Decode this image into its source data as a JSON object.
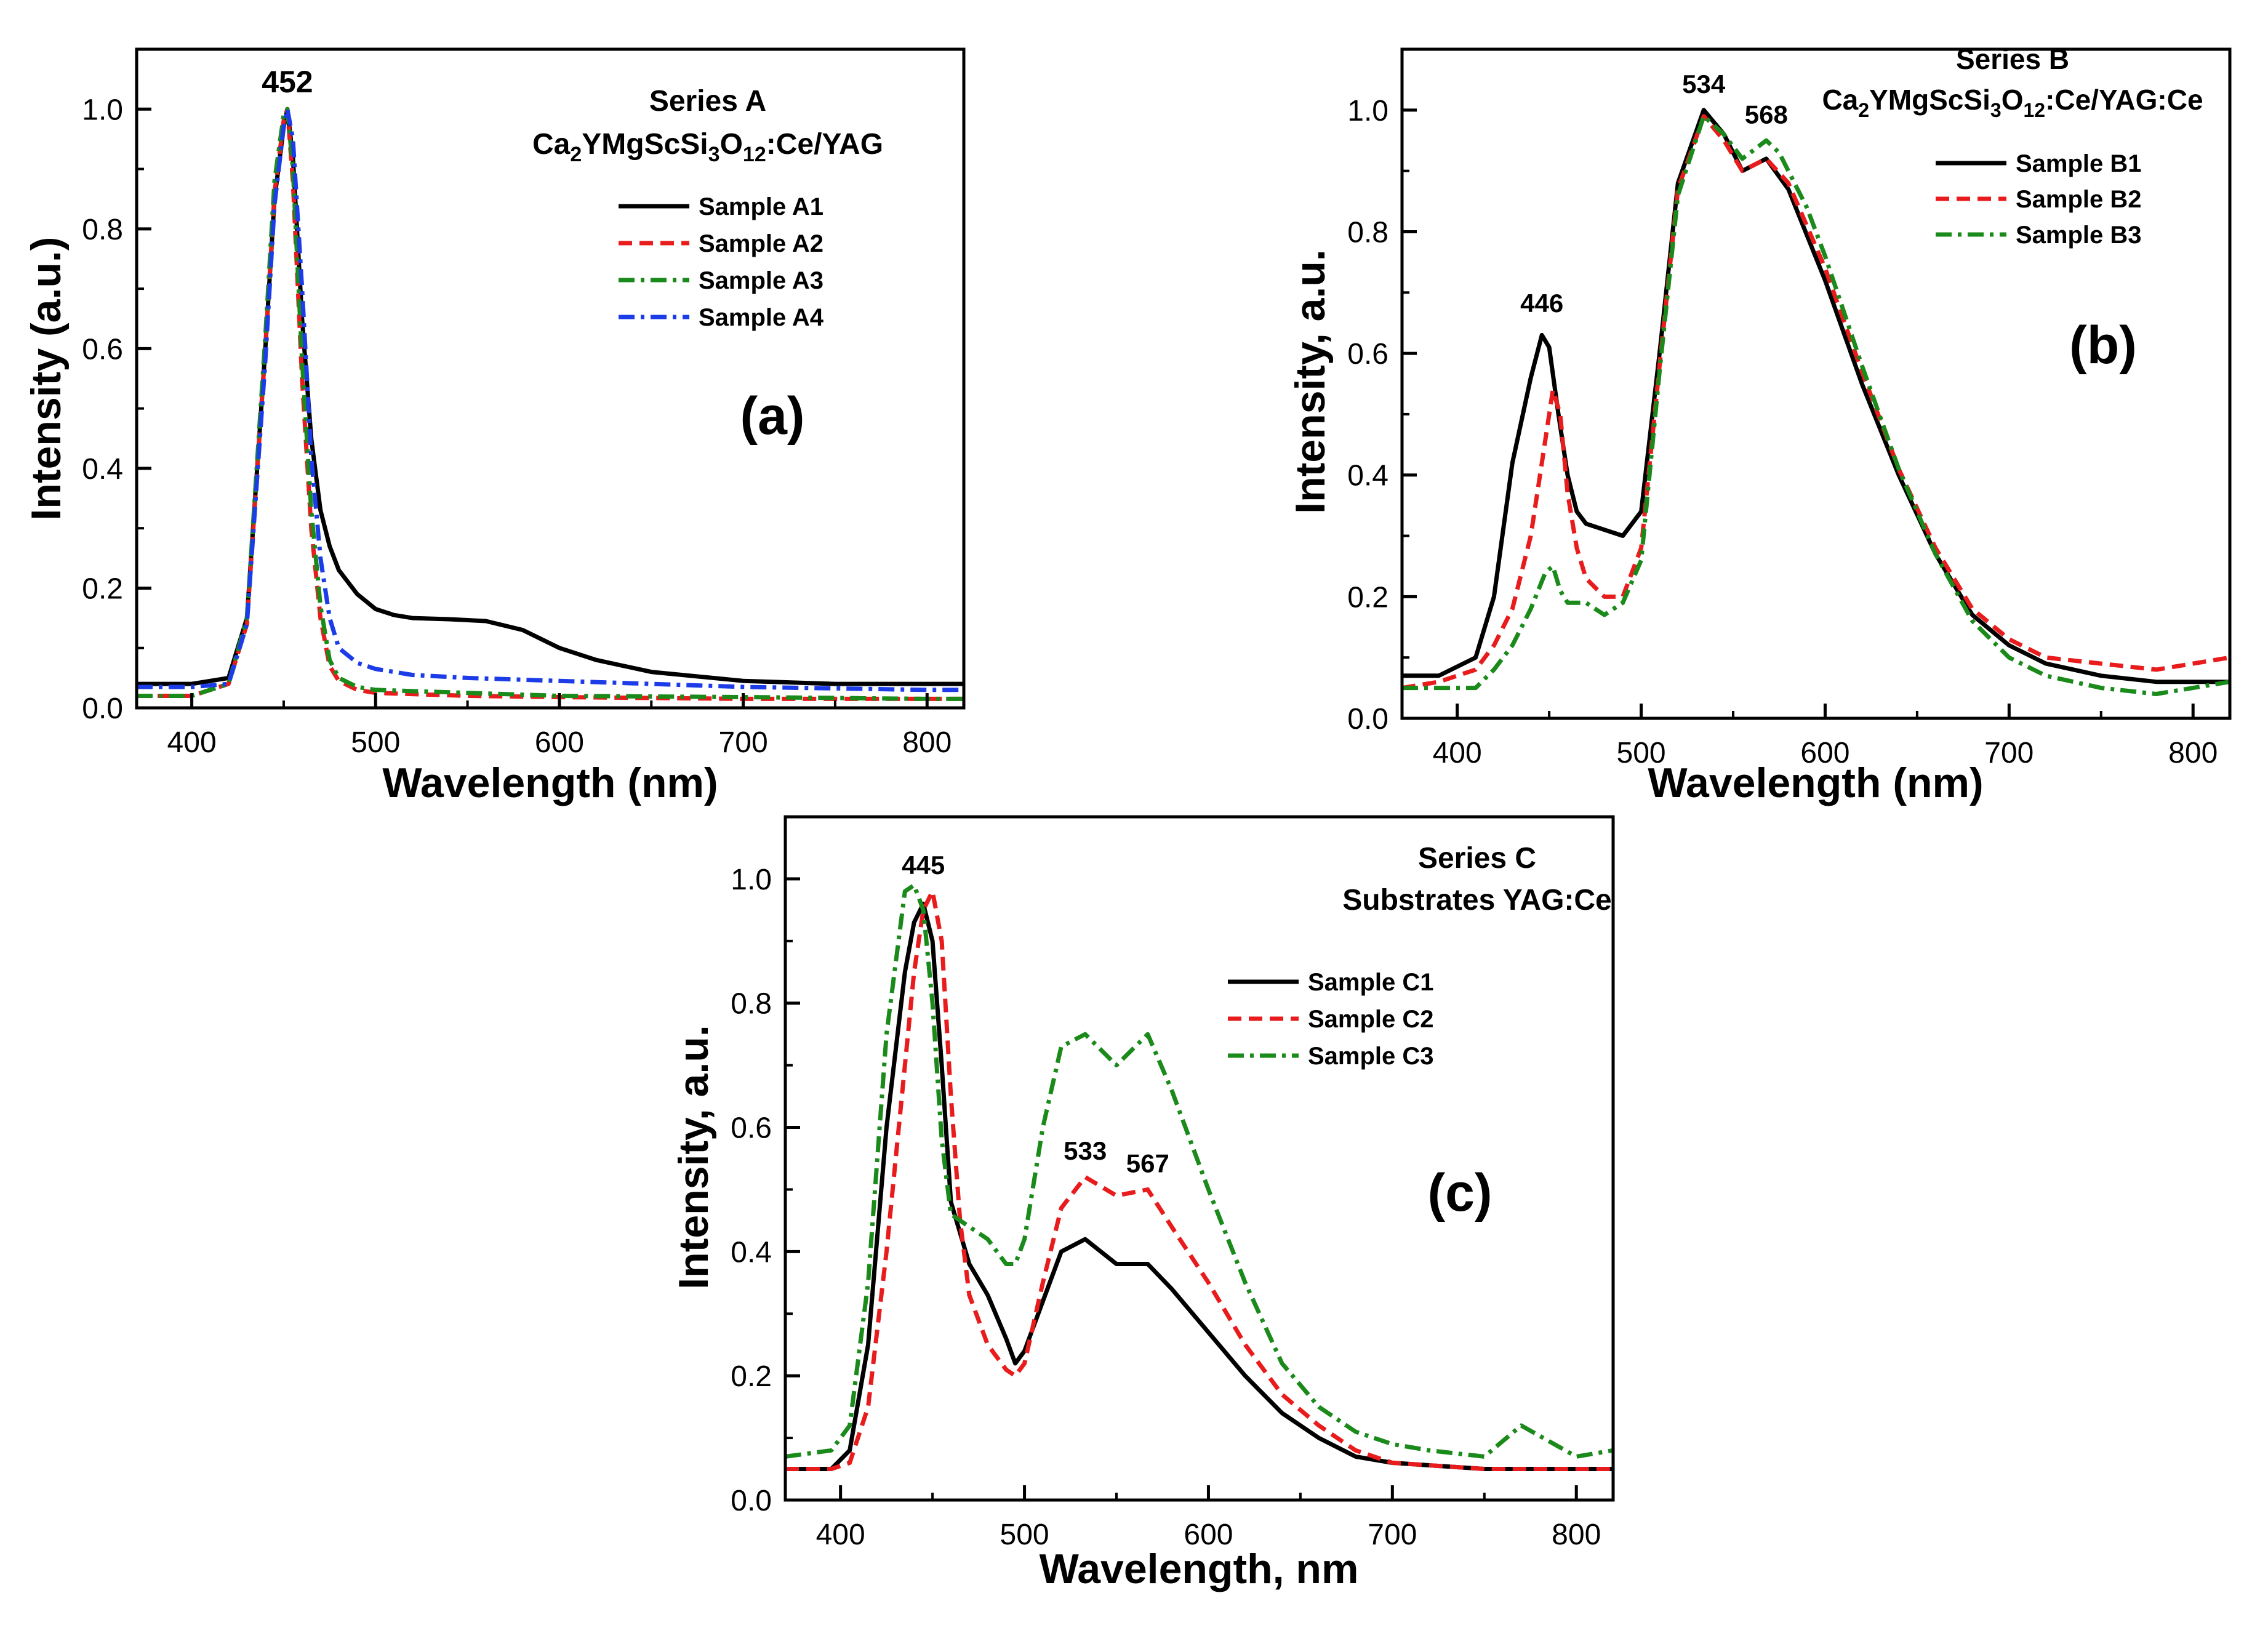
{
  "chart_data": [
    {
      "type": "line",
      "panel_label": "(a)",
      "title": "Series A",
      "subtitle": "Ca2YMgScSi3O12:Ce/YAG",
      "xlabel": "Wavelength (nm)",
      "ylabel": "Intensity (a.u.)",
      "xlim": [
        370,
        820
      ],
      "ylim": [
        0,
        1.1
      ],
      "xticks": [
        400,
        500,
        600,
        700,
        800
      ],
      "yticks": [
        0.0,
        0.2,
        0.4,
        0.6,
        0.8,
        1.0
      ],
      "xtick_labels": [
        "400",
        "500",
        "600",
        "700",
        "800"
      ],
      "ytick_labels": [
        "0.0",
        "0.2",
        "0.4",
        "0.6",
        "0.8",
        "1.0"
      ],
      "legend_position": "top-right",
      "annotations": [
        {
          "text": "452",
          "x": 452,
          "y": 1.02
        }
      ],
      "series": [
        {
          "name": "Sample A1",
          "color": "#000000",
          "dash": "solid",
          "x": [
            370,
            400,
            420,
            430,
            440,
            445,
            450,
            452,
            455,
            460,
            465,
            470,
            475,
            480,
            490,
            500,
            510,
            520,
            540,
            560,
            580,
            600,
            620,
            650,
            700,
            750,
            800,
            820
          ],
          "y": [
            0.04,
            0.04,
            0.05,
            0.15,
            0.6,
            0.85,
            0.97,
            1.0,
            0.92,
            0.65,
            0.45,
            0.33,
            0.27,
            0.23,
            0.19,
            0.165,
            0.155,
            0.15,
            0.148,
            0.145,
            0.13,
            0.1,
            0.08,
            0.06,
            0.045,
            0.04,
            0.04,
            0.04
          ]
        },
        {
          "name": "Sample A2",
          "color": "#e81c1c",
          "dash": "dash",
          "x": [
            370,
            400,
            420,
            430,
            440,
            445,
            450,
            452,
            455,
            460,
            465,
            470,
            475,
            480,
            490,
            500,
            550,
            600,
            700,
            800,
            820
          ],
          "y": [
            0.02,
            0.02,
            0.04,
            0.14,
            0.6,
            0.86,
            0.98,
            1.0,
            0.88,
            0.55,
            0.3,
            0.15,
            0.07,
            0.045,
            0.03,
            0.025,
            0.02,
            0.018,
            0.015,
            0.015,
            0.015
          ]
        },
        {
          "name": "Sample A3",
          "color": "#1a8a1a",
          "dash": "dashdot",
          "x": [
            370,
            400,
            420,
            430,
            440,
            445,
            450,
            452,
            455,
            460,
            465,
            470,
            475,
            480,
            490,
            500,
            550,
            600,
            700,
            800,
            820
          ],
          "y": [
            0.02,
            0.02,
            0.04,
            0.15,
            0.62,
            0.88,
            0.99,
            1.0,
            0.9,
            0.58,
            0.33,
            0.17,
            0.08,
            0.05,
            0.035,
            0.03,
            0.025,
            0.02,
            0.018,
            0.015,
            0.015
          ]
        },
        {
          "name": "Sample A4",
          "color": "#1c3ce8",
          "dash": "dashdot",
          "x": [
            370,
            400,
            420,
            430,
            440,
            445,
            450,
            452,
            455,
            460,
            465,
            470,
            475,
            480,
            490,
            500,
            520,
            550,
            600,
            650,
            700,
            800,
            820
          ],
          "y": [
            0.035,
            0.035,
            0.04,
            0.14,
            0.58,
            0.84,
            0.97,
            1.0,
            0.95,
            0.7,
            0.42,
            0.25,
            0.15,
            0.1,
            0.075,
            0.065,
            0.055,
            0.05,
            0.045,
            0.04,
            0.035,
            0.03,
            0.03
          ]
        }
      ]
    },
    {
      "type": "line",
      "panel_label": "(b)",
      "title": "Series B",
      "subtitle": "Ca2YMgScSi3O12:Ce/YAG:Ce",
      "xlabel": "Wavelength (nm)",
      "ylabel": "Intensity, a.u.",
      "xlim": [
        370,
        820
      ],
      "ylim": [
        0,
        1.1
      ],
      "xticks": [
        400,
        500,
        600,
        700,
        800
      ],
      "yticks": [
        0.0,
        0.2,
        0.4,
        0.6,
        0.8,
        1.0
      ],
      "xtick_labels": [
        "400",
        "500",
        "600",
        "700",
        "800"
      ],
      "ytick_labels": [
        "0.0",
        "0.2",
        "0.4",
        "0.6",
        "0.8",
        "1.0"
      ],
      "legend_position": "top-right",
      "annotations": [
        {
          "text": "446",
          "x": 446,
          "y": 0.66
        },
        {
          "text": "534",
          "x": 534,
          "y": 1.02
        },
        {
          "text": "568",
          "x": 568,
          "y": 0.97
        }
      ],
      "series": [
        {
          "name": "Sample B1",
          "color": "#000000",
          "dash": "solid",
          "x": [
            370,
            390,
            410,
            420,
            430,
            440,
            446,
            450,
            455,
            460,
            465,
            470,
            480,
            490,
            500,
            510,
            520,
            534,
            545,
            555,
            568,
            580,
            600,
            620,
            640,
            660,
            680,
            700,
            720,
            750,
            780,
            800,
            820
          ],
          "y": [
            0.07,
            0.07,
            0.1,
            0.2,
            0.42,
            0.56,
            0.63,
            0.61,
            0.5,
            0.4,
            0.34,
            0.32,
            0.31,
            0.3,
            0.34,
            0.6,
            0.88,
            1.0,
            0.96,
            0.9,
            0.92,
            0.87,
            0.72,
            0.55,
            0.4,
            0.27,
            0.17,
            0.12,
            0.09,
            0.07,
            0.06,
            0.06,
            0.06
          ]
        },
        {
          "name": "Sample B2",
          "color": "#e81c1c",
          "dash": "dash",
          "x": [
            370,
            390,
            410,
            420,
            430,
            440,
            446,
            452,
            456,
            460,
            465,
            470,
            480,
            490,
            500,
            510,
            520,
            534,
            545,
            555,
            568,
            580,
            600,
            620,
            640,
            660,
            680,
            700,
            720,
            750,
            780,
            800,
            820
          ],
          "y": [
            0.05,
            0.06,
            0.08,
            0.12,
            0.18,
            0.3,
            0.42,
            0.54,
            0.5,
            0.37,
            0.28,
            0.23,
            0.2,
            0.2,
            0.28,
            0.58,
            0.87,
            0.99,
            0.95,
            0.9,
            0.92,
            0.88,
            0.74,
            0.57,
            0.41,
            0.28,
            0.18,
            0.13,
            0.1,
            0.09,
            0.08,
            0.09,
            0.1
          ]
        },
        {
          "name": "Sample B3",
          "color": "#1a8a1a",
          "dash": "dashdot",
          "x": [
            370,
            390,
            410,
            420,
            430,
            440,
            448,
            452,
            456,
            460,
            470,
            480,
            490,
            500,
            510,
            520,
            534,
            545,
            555,
            568,
            575,
            590,
            600,
            620,
            640,
            660,
            680,
            700,
            720,
            750,
            780,
            800,
            820
          ],
          "y": [
            0.05,
            0.05,
            0.05,
            0.08,
            0.12,
            0.18,
            0.24,
            0.25,
            0.21,
            0.19,
            0.19,
            0.17,
            0.19,
            0.26,
            0.57,
            0.86,
            0.99,
            0.96,
            0.92,
            0.95,
            0.93,
            0.84,
            0.76,
            0.58,
            0.41,
            0.27,
            0.16,
            0.1,
            0.07,
            0.05,
            0.04,
            0.05,
            0.06
          ]
        }
      ]
    },
    {
      "type": "line",
      "panel_label": "(c)",
      "title": "Series C",
      "subtitle": "Substrates YAG:Ce",
      "xlabel": "Wavelength, nm",
      "ylabel": "Intensity, a.u.",
      "xlim": [
        370,
        820
      ],
      "ylim": [
        0,
        1.1
      ],
      "xticks": [
        400,
        500,
        600,
        700,
        800
      ],
      "yticks": [
        0.0,
        0.2,
        0.4,
        0.6,
        0.8,
        1.0
      ],
      "xtick_labels": [
        "400",
        "500",
        "600",
        "700",
        "800"
      ],
      "ytick_labels": [
        "0.0",
        "0.2",
        "0.4",
        "0.6",
        "0.8",
        "1.0"
      ],
      "legend_position": "right",
      "annotations": [
        {
          "text": "445",
          "x": 445,
          "y": 1.0
        },
        {
          "text": "533",
          "x": 533,
          "y": 0.54
        },
        {
          "text": "567",
          "x": 567,
          "y": 0.52
        }
      ],
      "series": [
        {
          "name": "Sample C1",
          "color": "#000000",
          "dash": "solid",
          "x": [
            370,
            395,
            405,
            415,
            425,
            435,
            440,
            445,
            450,
            455,
            460,
            470,
            480,
            490,
            495,
            500,
            510,
            520,
            533,
            550,
            567,
            580,
            600,
            620,
            640,
            660,
            680,
            700,
            750,
            800,
            820
          ],
          "y": [
            0.05,
            0.05,
            0.08,
            0.25,
            0.6,
            0.85,
            0.93,
            0.96,
            0.9,
            0.7,
            0.48,
            0.38,
            0.33,
            0.26,
            0.22,
            0.24,
            0.32,
            0.4,
            0.42,
            0.38,
            0.38,
            0.34,
            0.27,
            0.2,
            0.14,
            0.1,
            0.07,
            0.06,
            0.05,
            0.05,
            0.05
          ]
        },
        {
          "name": "Sample C2",
          "color": "#e81c1c",
          "dash": "dash",
          "x": [
            370,
            395,
            405,
            415,
            425,
            435,
            440,
            445,
            450,
            455,
            460,
            465,
            470,
            480,
            490,
            495,
            500,
            510,
            520,
            533,
            550,
            567,
            580,
            600,
            620,
            640,
            660,
            680,
            700,
            750,
            800,
            820
          ],
          "y": [
            0.05,
            0.05,
            0.06,
            0.15,
            0.4,
            0.7,
            0.85,
            0.95,
            0.98,
            0.9,
            0.65,
            0.45,
            0.33,
            0.25,
            0.21,
            0.2,
            0.22,
            0.35,
            0.47,
            0.52,
            0.49,
            0.5,
            0.44,
            0.35,
            0.25,
            0.17,
            0.12,
            0.08,
            0.06,
            0.05,
            0.05,
            0.05
          ]
        },
        {
          "name": "Sample C3",
          "color": "#1a8a1a",
          "dash": "dashdot",
          "x": [
            370,
            395,
            405,
            415,
            425,
            435,
            440,
            445,
            450,
            455,
            460,
            470,
            480,
            490,
            495,
            500,
            510,
            520,
            533,
            550,
            567,
            580,
            600,
            620,
            640,
            660,
            680,
            700,
            720,
            750,
            770,
            800,
            820
          ],
          "y": [
            0.07,
            0.08,
            0.12,
            0.35,
            0.75,
            0.98,
            0.99,
            0.95,
            0.8,
            0.58,
            0.46,
            0.44,
            0.42,
            0.38,
            0.38,
            0.42,
            0.6,
            0.73,
            0.75,
            0.7,
            0.75,
            0.66,
            0.5,
            0.35,
            0.22,
            0.15,
            0.11,
            0.09,
            0.08,
            0.07,
            0.12,
            0.07,
            0.08
          ]
        }
      ]
    }
  ]
}
